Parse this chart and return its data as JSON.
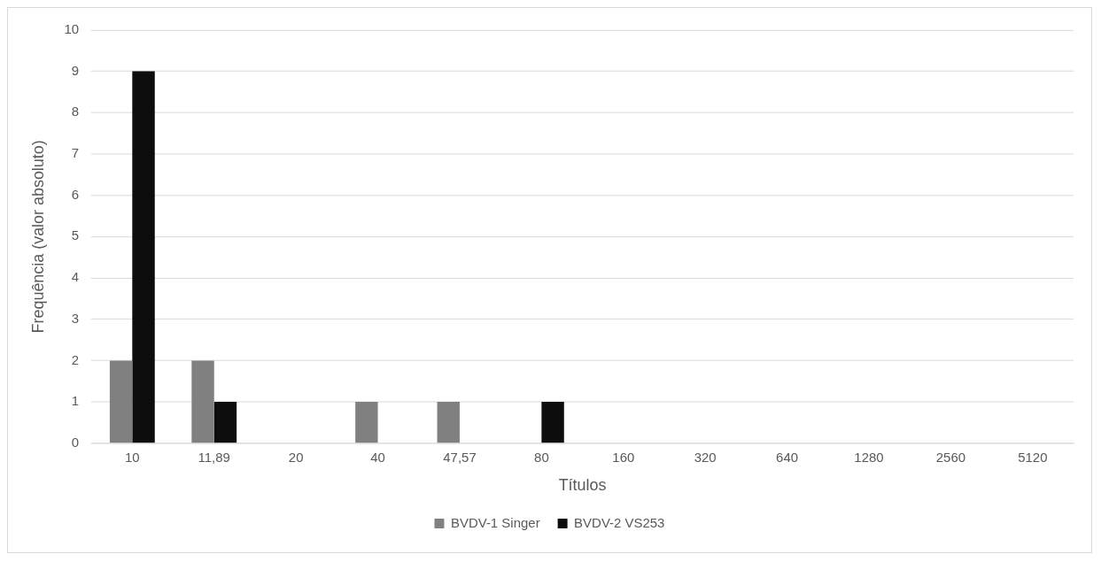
{
  "chart_data": {
    "type": "bar",
    "xlabel": "Títulos",
    "ylabel": "Frequência (valor absoluto)",
    "categories": [
      "10",
      "11,89",
      "20",
      "40",
      "47,57",
      "80",
      "160",
      "320",
      "640",
      "1280",
      "2560",
      "5120"
    ],
    "series": [
      {
        "name": "BVDV-1 Singer",
        "color": "#808080",
        "values": [
          2,
          2,
          0,
          1,
          1,
          0,
          0,
          0,
          0,
          0,
          0,
          0
        ]
      },
      {
        "name": "BVDV-2 VS253",
        "color": "#0d0d0d",
        "values": [
          9,
          1,
          0,
          0,
          0,
          1,
          0,
          0,
          0,
          0,
          0,
          0
        ]
      }
    ],
    "ylim": [
      0,
      10
    ],
    "yticks": [
      0,
      1,
      2,
      3,
      4,
      5,
      6,
      7,
      8,
      9,
      10
    ],
    "grid": "y",
    "legend": "bottom"
  }
}
